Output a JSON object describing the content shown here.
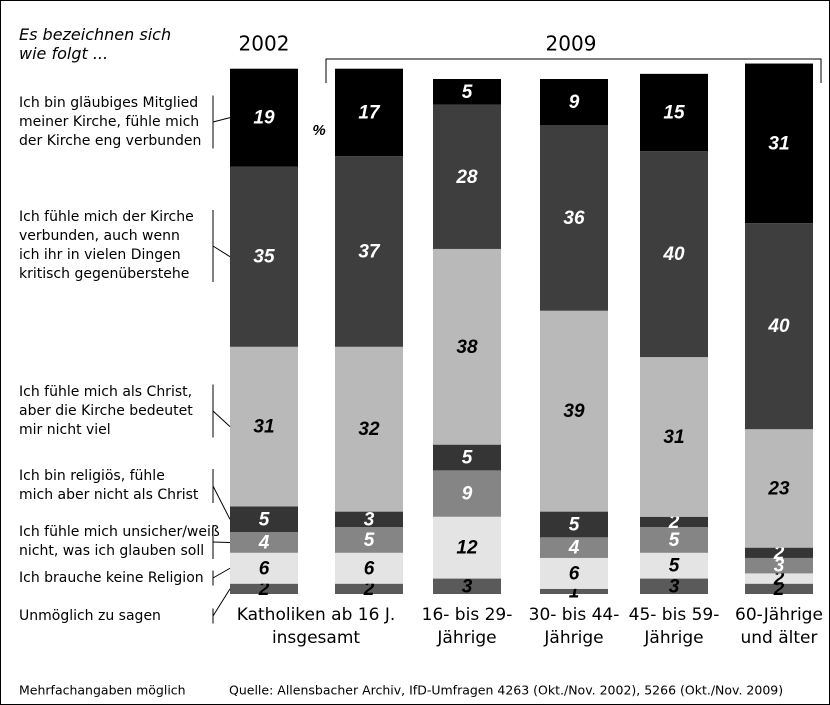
{
  "chart_data": {
    "type": "stacked_bar",
    "heading": "Es bezeichnen sich\nwie folgt ...",
    "year_labels": [
      "2002",
      "2009"
    ],
    "unit_label": "%",
    "group_label": "Katholiken ab 16 J.\ninsgesamt",
    "categories": [
      null,
      null,
      "16- bis 29-\nJährige",
      "30- bis 44-\nJährige",
      "45- bis 59-\nJährige",
      "60-Jährige\nund älter"
    ],
    "series": [
      {
        "name": "Unmöglich zu sagen",
        "color": "#5a5a5a",
        "text_color": "#000000",
        "values": [
          2,
          2,
          3,
          1,
          3,
          2
        ]
      },
      {
        "name": "Ich brauche keine Religion",
        "color": "#e4e4e4",
        "text_color": "#000000",
        "values": [
          6,
          6,
          12,
          6,
          5,
          2
        ]
      },
      {
        "name": "Ich fühle mich unsicher/weiß\nnicht, was ich glauben soll",
        "color": "#858585",
        "text_color": "#ffffff",
        "values": [
          4,
          5,
          9,
          4,
          5,
          3
        ]
      },
      {
        "name": "Ich bin religiös, fühle\nmich aber nicht als Christ",
        "color": "#353535",
        "text_color": "#ffffff",
        "values": [
          5,
          3,
          5,
          5,
          2,
          2
        ]
      },
      {
        "name": "Ich fühle mich als Christ,\naber die Kirche bedeutet\nmir nicht viel",
        "color": "#b9b9b9",
        "text_color": "#000000",
        "values": [
          31,
          32,
          38,
          39,
          31,
          23
        ]
      },
      {
        "name": "Ich fühle mich der Kirche\nverbunden, auch wenn\nich ihr in vielen Dingen\nkritisch gegenüberstehe",
        "color": "#3e3e3e",
        "text_color": "#ffffff",
        "values": [
          35,
          37,
          28,
          36,
          40,
          40
        ]
      },
      {
        "name": "Ich bin gläubiges Mitglied\nmeiner Kirche, fühle mich\nder Kirche eng verbunden",
        "color": "#000000",
        "text_color": "#ffffff",
        "values": [
          19,
          17,
          5,
          9,
          15,
          31
        ]
      }
    ],
    "footnote": "Mehrfachangaben möglich",
    "source": "Quelle: Allensbacher Archiv, IfD-Umfragen 4263 (Okt./Nov. 2002), 5266 (Okt./Nov. 2009)"
  }
}
